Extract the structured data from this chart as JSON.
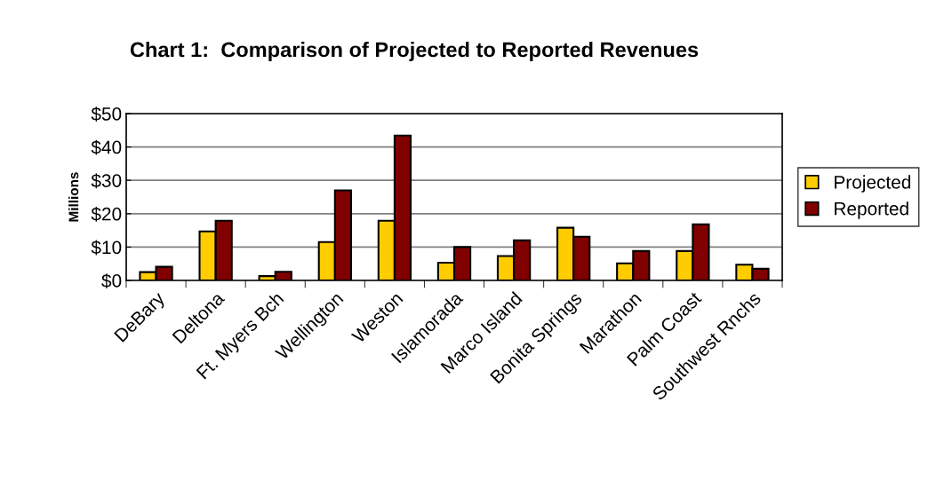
{
  "chart_data": {
    "type": "bar",
    "title": "Chart 1:  Comparison of Projected to Reported Revenues",
    "ylabel": "Millions",
    "categories": [
      "DeBary",
      "Deltona",
      "Ft. Myers Bch",
      "Wellington",
      "Weston",
      "Islamorada",
      "Marco Island",
      "Bonita Springs",
      "Marathon",
      "Palm Coast",
      "Southwest Rnchs"
    ],
    "series": [
      {
        "name": "Projected",
        "color": "#ffcc00",
        "values": [
          2.5,
          14.7,
          1.3,
          11.5,
          17.9,
          5.3,
          7.3,
          15.8,
          5.1,
          8.8,
          4.7
        ]
      },
      {
        "name": "Reported",
        "color": "#800000",
        "values": [
          4.1,
          17.9,
          2.6,
          27.0,
          43.4,
          10.0,
          12.0,
          13.1,
          8.8,
          16.8,
          3.5
        ]
      }
    ],
    "ylim": [
      0,
      50
    ],
    "yticks": [
      {
        "value": 0,
        "label": "$0"
      },
      {
        "value": 10,
        "label": "$10"
      },
      {
        "value": 20,
        "label": "$20"
      },
      {
        "value": 30,
        "label": "$30"
      },
      {
        "value": 40,
        "label": "$40"
      },
      {
        "value": 50,
        "label": "$50"
      }
    ],
    "grid": "y",
    "legend": "right"
  }
}
